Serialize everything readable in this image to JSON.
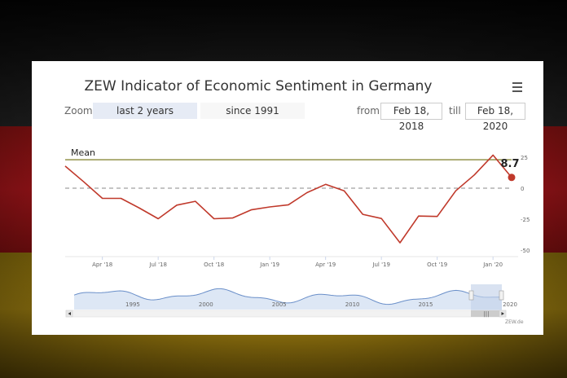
{
  "title": "ZEW Indicator of Economic Sentiment in Germany",
  "zoom": {
    "label": "Zoom",
    "buttons": [
      "last 2 years",
      "since 1991"
    ],
    "selected": "last 2 years"
  },
  "range": {
    "from_label": "from",
    "from": "Feb 18, 2018",
    "till_label": "till",
    "till": "Feb 18, 2020"
  },
  "credit": "ZEW.de",
  "colors": {
    "series": "#c0392b",
    "mean": "#8a8a3a",
    "zero_line": "#888888",
    "navigator": "#6a8fc9"
  },
  "chart_data": {
    "type": "line",
    "title": "ZEW Indicator of Economic Sentiment in Germany",
    "x_ticks": [
      "Apr '18",
      "Jul '18",
      "Oct '18",
      "Jan '19",
      "Apr '19",
      "Jul '19",
      "Oct '19",
      "Jan '20"
    ],
    "y_ticks": [
      25,
      0,
      -25,
      -50
    ],
    "ylim": [
      -50,
      25
    ],
    "grid": false,
    "mean": {
      "label": "Mean",
      "value": 23
    },
    "series": [
      {
        "x": [
          "2018-02",
          "2018-03",
          "2018-04",
          "2018-05",
          "2018-06",
          "2018-07",
          "2018-08",
          "2018-09",
          "2018-10",
          "2018-11",
          "2018-12",
          "2019-01",
          "2019-02",
          "2019-03",
          "2019-04",
          "2019-05",
          "2019-06",
          "2019-07",
          "2019-08",
          "2019-09",
          "2019-10",
          "2019-11",
          "2019-12",
          "2020-01",
          "2020-02"
        ],
        "y": [
          17.8,
          5.1,
          -8.2,
          -8.2,
          -16.1,
          -24.7,
          -13.7,
          -10.6,
          -24.7,
          -24.1,
          -17.5,
          -15.1,
          -13.4,
          -3.6,
          3.1,
          -2.1,
          -21.1,
          -24.5,
          -44.1,
          -22.5,
          -22.8,
          -2.1,
          10.7,
          26.7,
          8.7
        ]
      }
    ],
    "last_point_label": "8.7",
    "navigator": {
      "x_ticks": [
        "1995",
        "2000",
        "2005",
        "2010",
        "2015",
        "2020"
      ],
      "scrollbar_handle": "|||"
    }
  }
}
